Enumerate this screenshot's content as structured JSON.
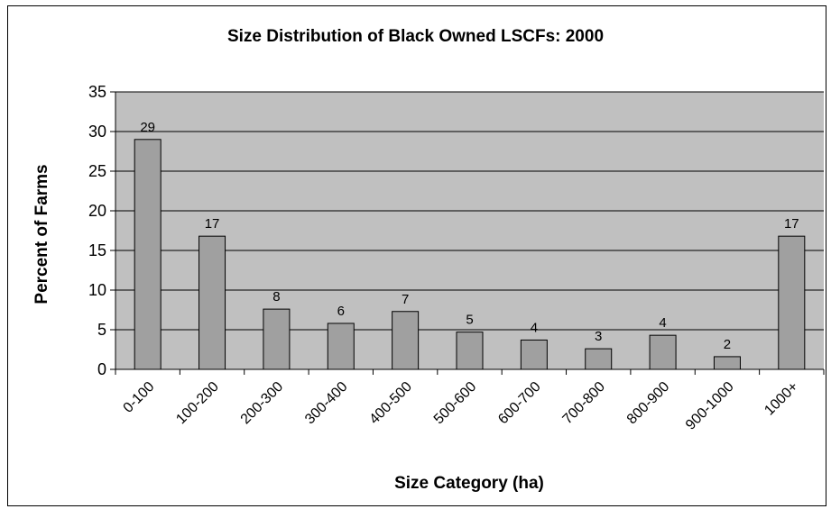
{
  "chart_data": {
    "type": "bar",
    "title": "Size Distribution of Black Owned LSCFs: 2000",
    "xlabel": "Size Category (ha)",
    "ylabel": "Percent of Farms",
    "categories": [
      "0-100",
      "100-200",
      "200-300",
      "300-400",
      "400-500",
      "500-600",
      "600-700",
      "700-800",
      "800-900",
      "900-1000",
      "1000+"
    ],
    "values": [
      29,
      16.8,
      7.6,
      5.8,
      7.3,
      4.7,
      3.7,
      2.6,
      4.3,
      1.6,
      16.8
    ],
    "data_labels": [
      "29",
      "17",
      "8",
      "6",
      "7",
      "5",
      "4",
      "3",
      "4",
      "2",
      "17"
    ],
    "ylim": [
      0,
      35
    ],
    "yticks": [
      0,
      5,
      10,
      15,
      20,
      25,
      30,
      35
    ],
    "grid": true,
    "legend": "none",
    "colors": {
      "plot_background": "#c0c0c0",
      "bar_fill": "#a0a0a0",
      "bar_stroke": "#000000",
      "gridline": "#000000"
    }
  }
}
